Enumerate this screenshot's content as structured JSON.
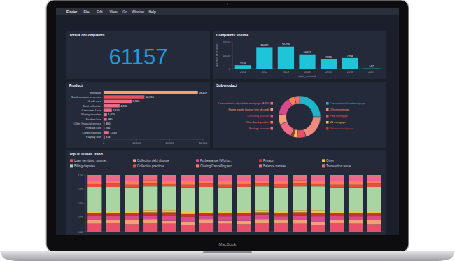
{
  "menu_bar": {
    "items": [
      "Finder",
      "File",
      "Edit",
      "View",
      "Go",
      "Window",
      "Help"
    ]
  },
  "device_label": "MacBook",
  "kpi": {
    "title": "Total # of Complaints",
    "value": 61157
  },
  "chart_data": [
    {
      "type": "bar",
      "title": "Complaints Volume",
      "x_label": "date_received",
      "y_label": "Number of records",
      "categories": [
        "2011",
        "2012",
        "2013",
        "2014",
        "2015",
        "2016",
        "2017"
      ],
      "values": [
        2536,
        16089,
        16459,
        10677,
        7285,
        7964,
        147
      ],
      "color": "#1fc4d8",
      "ylim": [
        0,
        20000
      ],
      "yticks": [
        0,
        10000,
        20000
      ],
      "grid": false,
      "data_labels": true
    },
    {
      "type": "bar",
      "orientation": "horizontal",
      "title": "Product",
      "categories": [
        "Mortgage",
        "Bank account or service",
        "Credit card",
        "Debt collection",
        "Consumer Loan",
        "Money transfers",
        "Student loan",
        "Other financial service",
        "Prepaid card",
        "Credit reporting",
        "Payday loan"
      ],
      "values": [
        28459,
        12334,
        8520,
        4830,
        2470,
        1020,
        980,
        300,
        280,
        1630,
        334
      ],
      "value_labels": [
        "28,459",
        "12,334",
        "8,520",
        "4,830",
        "2,470",
        "1,020",
        "980",
        "300",
        "280",
        "1,630",
        "334"
      ],
      "data_labels": true,
      "colors": [
        "#f4a26b",
        "#e8505b",
        "#ec6b86",
        "#ec6b86",
        "#ec6b86",
        "#ec6b86",
        "#ec6b86",
        "#ec6b86",
        "#ec6b86",
        "#ec6b86",
        "#ec6b86"
      ],
      "xlim": [
        0,
        30000
      ],
      "xticks": [
        0,
        {
          "value": 10000,
          "label": "10,000"
        },
        {
          "value": 20000,
          "label": "20,000"
        },
        {
          "value": 30000,
          "label": "30,000"
        }
      ]
    },
    {
      "type": "donut",
      "title": "Sub-product",
      "categories": [
        "Conventional fixed mortgage",
        "Other mortgage",
        "FHA mortgage",
        "VA mortgage",
        "Reverse mortgage",
        "Conventional adjustable mortgage (ARM)",
        "Home equity loan or line of credit",
        "Checking account",
        "Other bank product",
        "Savings account"
      ],
      "values": [
        25,
        20,
        7,
        3,
        2,
        12,
        8,
        14,
        5,
        4
      ],
      "colors": [
        "#1fb5c9",
        "#f08a7e",
        "#e8506a",
        "#f4c542",
        "#c0392b",
        "#ec6b86",
        "#f2a07b",
        "#d94a8c",
        "#ff7f50",
        "#e57373"
      ]
    },
    {
      "type": "bar",
      "stacked": true,
      "title": "Top 10 issues Trend",
      "legend": "top",
      "tick_labels": "y",
      "categories": [
        null,
        null,
        null,
        null,
        null,
        null,
        null,
        null,
        null,
        null,
        null,
        null,
        null,
        null,
        null,
        null
      ],
      "ylim": [
        0,
        1
      ],
      "yticks": [
        {
          "value": 0,
          "label": "0.00"
        },
        {
          "value": 0.25,
          "label": "0.25"
        },
        {
          "value": 0.5,
          "label": "0.50"
        },
        {
          "value": 0.75,
          "label": "0.75"
        },
        {
          "value": 1,
          "label": "1.00"
        }
      ],
      "series": [
        {
          "name": "Loan servicing, payme...",
          "color": "#e8506a",
          "values": [
            0.14,
            0.15,
            0.13,
            0.16,
            0.14,
            0.12,
            0.15,
            0.14,
            0.13,
            0.16,
            0.15,
            0.14,
            0.12,
            0.15,
            0.14,
            0.13
          ]
        },
        {
          "name": "Collection debt dispute",
          "color": "#f2a07b",
          "values": [
            0.06,
            0.05,
            0.07,
            0.06,
            0.05,
            0.06,
            0.07,
            0.05,
            0.06,
            0.06,
            0.05,
            0.07,
            0.06,
            0.05,
            0.06,
            0.07
          ]
        },
        {
          "name": "Forbearance / Worko...",
          "color": "#d94a8c",
          "values": [
            0.08,
            0.09,
            0.08,
            0.07,
            0.09,
            0.08,
            0.07,
            0.08,
            0.09,
            0.08,
            0.07,
            0.08,
            0.09,
            0.08,
            0.07,
            0.08
          ]
        },
        {
          "name": "Privacy",
          "color": "#c0392b",
          "values": [
            0.05,
            0.04,
            0.05,
            0.05,
            0.06,
            0.05,
            0.04,
            0.05,
            0.05,
            0.04,
            0.05,
            0.05,
            0.06,
            0.05,
            0.05,
            0.04
          ]
        },
        {
          "name": "Other",
          "color": "#f4c542",
          "values": [
            0.04,
            0.04,
            0.03,
            0.04,
            0.04,
            0.05,
            0.04,
            0.04,
            0.03,
            0.04,
            0.04,
            0.04,
            0.05,
            0.04,
            0.04,
            0.04
          ]
        },
        {
          "name": "Billing disputes",
          "color": "#a8d5a2",
          "values": [
            0.42,
            0.42,
            0.42,
            0.42,
            0.42,
            0.42,
            0.42,
            0.42,
            0.43,
            0.42,
            0.42,
            0.42,
            0.42,
            0.41,
            0.42,
            0.43
          ]
        },
        {
          "name": "Collection practices",
          "color": "#e74c3c",
          "values": [
            0.05,
            0.06,
            0.05,
            0.05,
            0.04,
            0.05,
            0.06,
            0.05,
            0.05,
            0.05,
            0.06,
            0.05,
            0.04,
            0.05,
            0.05,
            0.06
          ]
        },
        {
          "name": "Closing/Cancelling acc...",
          "color": "#ff7f50",
          "values": [
            0.06,
            0.05,
            0.06,
            0.06,
            0.06,
            0.07,
            0.05,
            0.06,
            0.06,
            0.05,
            0.06,
            0.06,
            0.06,
            0.07,
            0.06,
            0.05
          ]
        },
        {
          "name": "Balance transfer",
          "color": "#f06292",
          "values": [
            0.05,
            0.05,
            0.05,
            0.04,
            0.05,
            0.05,
            0.05,
            0.06,
            0.05,
            0.05,
            0.05,
            0.04,
            0.05,
            0.05,
            0.05,
            0.05
          ]
        },
        {
          "name": "Transaction issue",
          "color": "#e57373",
          "values": [
            0.05,
            0.05,
            0.06,
            0.05,
            0.05,
            0.05,
            0.05,
            0.05,
            0.05,
            0.05,
            0.05,
            0.05,
            0.05,
            0.05,
            0.06,
            0.05
          ]
        }
      ]
    }
  ]
}
